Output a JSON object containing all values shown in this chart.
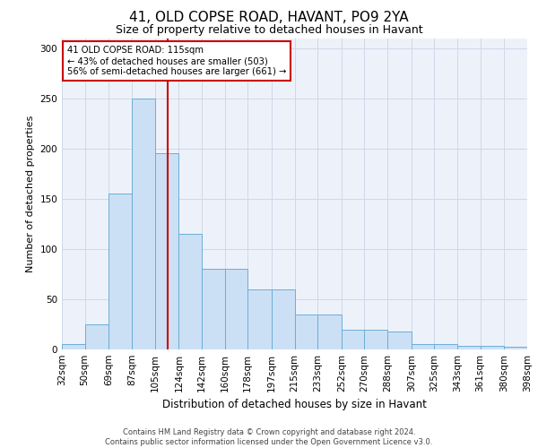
{
  "title1": "41, OLD COPSE ROAD, HAVANT, PO9 2YA",
  "title2": "Size of property relative to detached houses in Havant",
  "xlabel": "Distribution of detached houses by size in Havant",
  "ylabel": "Number of detached properties",
  "footnote": "Contains HM Land Registry data © Crown copyright and database right 2024.\nContains public sector information licensed under the Open Government Licence v3.0.",
  "bin_edges": [
    32,
    50,
    69,
    87,
    105,
    124,
    142,
    160,
    178,
    197,
    215,
    233,
    252,
    270,
    288,
    307,
    325,
    343,
    361,
    380,
    398
  ],
  "bar_heights": [
    5,
    25,
    155,
    250,
    195,
    115,
    80,
    80,
    60,
    60,
    35,
    35,
    20,
    20,
    18,
    5,
    5,
    4,
    4,
    3
  ],
  "bar_facecolor": "#cce0f5",
  "bar_edgecolor": "#6aaed6",
  "vline_x": 115,
  "vline_color": "#cc0000",
  "annotation_text": "41 OLD COPSE ROAD: 115sqm\n← 43% of detached houses are smaller (503)\n56% of semi-detached houses are larger (661) →",
  "annotation_box_edgecolor": "#cc0000",
  "annotation_box_facecolor": "#ffffff",
  "ylim": [
    0,
    310
  ],
  "yticks": [
    0,
    50,
    100,
    150,
    200,
    250,
    300
  ],
  "grid_color": "#d0d8e8",
  "bg_color": "#edf2fa",
  "title1_fontsize": 11,
  "title2_fontsize": 9,
  "xlabel_fontsize": 8.5,
  "ylabel_fontsize": 8,
  "tick_fontsize": 7.5,
  "tick_labels": [
    "32sqm",
    "50sqm",
    "69sqm",
    "87sqm",
    "105sqm",
    "124sqm",
    "142sqm",
    "160sqm",
    "178sqm",
    "197sqm",
    "215sqm",
    "233sqm",
    "252sqm",
    "270sqm",
    "288sqm",
    "307sqm",
    "325sqm",
    "343sqm",
    "361sqm",
    "380sqm",
    "398sqm"
  ]
}
